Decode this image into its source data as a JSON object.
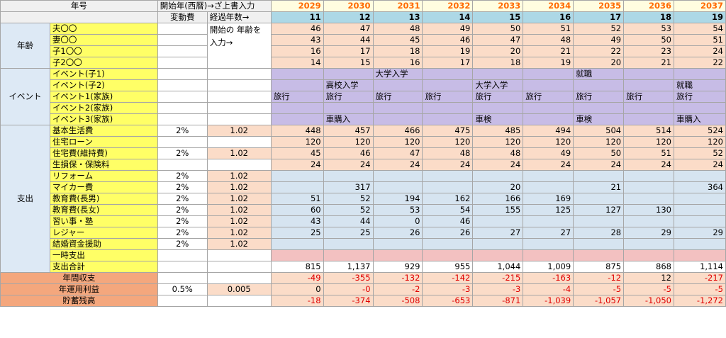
{
  "header": {
    "year_label": "年号",
    "start_year_note": "開始年(西暦)→ざ上書入力",
    "variable_label": "変動費",
    "elapsed_label": "経過年数→",
    "age_note": "開始の 年齢を入力→"
  },
  "years": [
    "2029",
    "2030",
    "2031",
    "2032",
    "2033",
    "2034",
    "2035",
    "2036",
    "2037"
  ],
  "elapsed": [
    "11",
    "12",
    "13",
    "14",
    "15",
    "16",
    "17",
    "18",
    "19"
  ],
  "groups": {
    "age": "年齢",
    "event": "イベント",
    "expense": "支出"
  },
  "age_rows": [
    {
      "label": "夫〇〇",
      "values": [
        "46",
        "47",
        "48",
        "49",
        "50",
        "51",
        "52",
        "53",
        "54"
      ]
    },
    {
      "label": "妻〇〇",
      "values": [
        "43",
        "44",
        "45",
        "46",
        "47",
        "48",
        "49",
        "50",
        "51"
      ]
    },
    {
      "label": "子1〇〇",
      "values": [
        "16",
        "17",
        "18",
        "19",
        "20",
        "21",
        "22",
        "23",
        "24"
      ]
    },
    {
      "label": "子2〇〇",
      "values": [
        "14",
        "15",
        "16",
        "17",
        "18",
        "19",
        "20",
        "21",
        "22"
      ]
    }
  ],
  "event_rows": [
    {
      "label": "イベント(子1)",
      "values": [
        "",
        "",
        "大学入学",
        "",
        "",
        "",
        "就職",
        "",
        ""
      ]
    },
    {
      "label": "イベント(子2)",
      "values": [
        "",
        "高校入学",
        "",
        "",
        "大学入学",
        "",
        "",
        "",
        "就職"
      ]
    },
    {
      "label": "イベント1(家族)",
      "values": [
        "旅行",
        "旅行",
        "旅行",
        "旅行",
        "旅行",
        "旅行",
        "旅行",
        "旅行",
        "旅行"
      ]
    },
    {
      "label": "イベント2(家族)",
      "values": [
        "",
        "",
        "",
        "",
        "",
        "",
        "",
        "",
        ""
      ]
    },
    {
      "label": "イベント3(家族)",
      "values": [
        "",
        "車購入",
        "",
        "",
        "車検",
        "",
        "車検",
        "",
        "車購入"
      ]
    }
  ],
  "expense_rows": [
    {
      "label": "基本生活費",
      "rate": "2%",
      "coef": "1.02",
      "color": "peach",
      "values": [
        "448",
        "457",
        "466",
        "475",
        "485",
        "494",
        "504",
        "514",
        "524"
      ]
    },
    {
      "label": "住宅ローン",
      "rate": "",
      "coef": "",
      "color": "peach",
      "values": [
        "120",
        "120",
        "120",
        "120",
        "120",
        "120",
        "120",
        "120",
        "120"
      ]
    },
    {
      "label": "住宅費(維持費)",
      "rate": "2%",
      "coef": "1.02",
      "color": "peach",
      "values": [
        "45",
        "46",
        "47",
        "48",
        "48",
        "49",
        "50",
        "51",
        "52"
      ]
    },
    {
      "label": "生損保・保険料",
      "rate": "",
      "coef": "",
      "color": "peach",
      "values": [
        "24",
        "24",
        "24",
        "24",
        "24",
        "24",
        "24",
        "24",
        "24"
      ]
    },
    {
      "label": "リフォーム",
      "rate": "2%",
      "coef": "1.02",
      "color": "blue",
      "values": [
        "",
        "",
        "",
        "",
        "",
        "",
        "",
        "",
        ""
      ]
    },
    {
      "label": "マイカー費",
      "rate": "2%",
      "coef": "1.02",
      "color": "blue",
      "values": [
        "",
        "317",
        "",
        "",
        "20",
        "",
        "21",
        "",
        "364"
      ]
    },
    {
      "label": "教育費(長男)",
      "rate": "2%",
      "coef": "1.02",
      "color": "blue",
      "values": [
        "51",
        "52",
        "194",
        "162",
        "166",
        "169",
        "",
        "",
        ""
      ]
    },
    {
      "label": "教育費(長女)",
      "rate": "2%",
      "coef": "1.02",
      "color": "blue",
      "values": [
        "60",
        "52",
        "53",
        "54",
        "155",
        "125",
        "127",
        "130",
        ""
      ]
    },
    {
      "label": "習い事・塾",
      "rate": "2%",
      "coef": "1.02",
      "color": "blue",
      "values": [
        "43",
        "44",
        "0",
        "46",
        "",
        "",
        "",
        "",
        ""
      ]
    },
    {
      "label": "レジャー",
      "rate": "2%",
      "coef": "1.02",
      "color": "blue",
      "values": [
        "25",
        "25",
        "26",
        "26",
        "27",
        "27",
        "28",
        "29",
        "29"
      ]
    },
    {
      "label": "結婚資金援助",
      "rate": "2%",
      "coef": "1.02",
      "color": "blue",
      "values": [
        "",
        "",
        "",
        "",
        "",
        "",
        "",
        "",
        ""
      ]
    },
    {
      "label": "一時支出",
      "rate": "",
      "coef": "",
      "color": "pink",
      "values": [
        "",
        "",
        "",
        "",
        "",
        "",
        "",
        "",
        ""
      ]
    },
    {
      "label": "支出合計",
      "rate": "",
      "coef": "",
      "color": "white",
      "values": [
        "815",
        "1,137",
        "929",
        "955",
        "1,044",
        "1,009",
        "875",
        "868",
        "1,114"
      ]
    }
  ],
  "summary_rows": [
    {
      "label": "年間収支",
      "rate": "",
      "coef": "",
      "values": [
        "-49",
        "-355",
        "-132",
        "-142",
        "-215",
        "-163",
        "-12",
        "12",
        "-217"
      ]
    },
    {
      "label": "年運用利益",
      "rate": "0.5%",
      "coef": "0.005",
      "values": [
        "0",
        "-0",
        "-2",
        "-3",
        "-3",
        "-4",
        "-5",
        "-5",
        "-5"
      ]
    },
    {
      "label": "貯蓄残高",
      "rate": "",
      "coef": "",
      "values": [
        "-18",
        "-374",
        "-508",
        "-653",
        "-871",
        "-1,039",
        "-1,057",
        "-1,050",
        "-1,272"
      ]
    }
  ]
}
